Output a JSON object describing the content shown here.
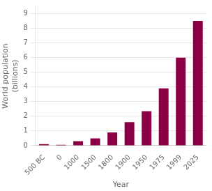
{
  "chart_data": {
    "type": "bar",
    "categories": [
      "500 BC",
      "0",
      "1000",
      "1500",
      "1800",
      "1900",
      "1950",
      "1975",
      "1999",
      "2025"
    ],
    "values": [
      0.1,
      0.05,
      0.3,
      0.5,
      0.9,
      1.6,
      2.35,
      3.9,
      6.0,
      8.5
    ],
    "color": "#8B0045",
    "xlabel": "Year",
    "ylabel": "World population\n(billions)",
    "ylim": [
      0,
      9.5
    ],
    "yticks": [
      0,
      1,
      2,
      3,
      4,
      5,
      6,
      7,
      8,
      9
    ],
    "grid": true
  }
}
